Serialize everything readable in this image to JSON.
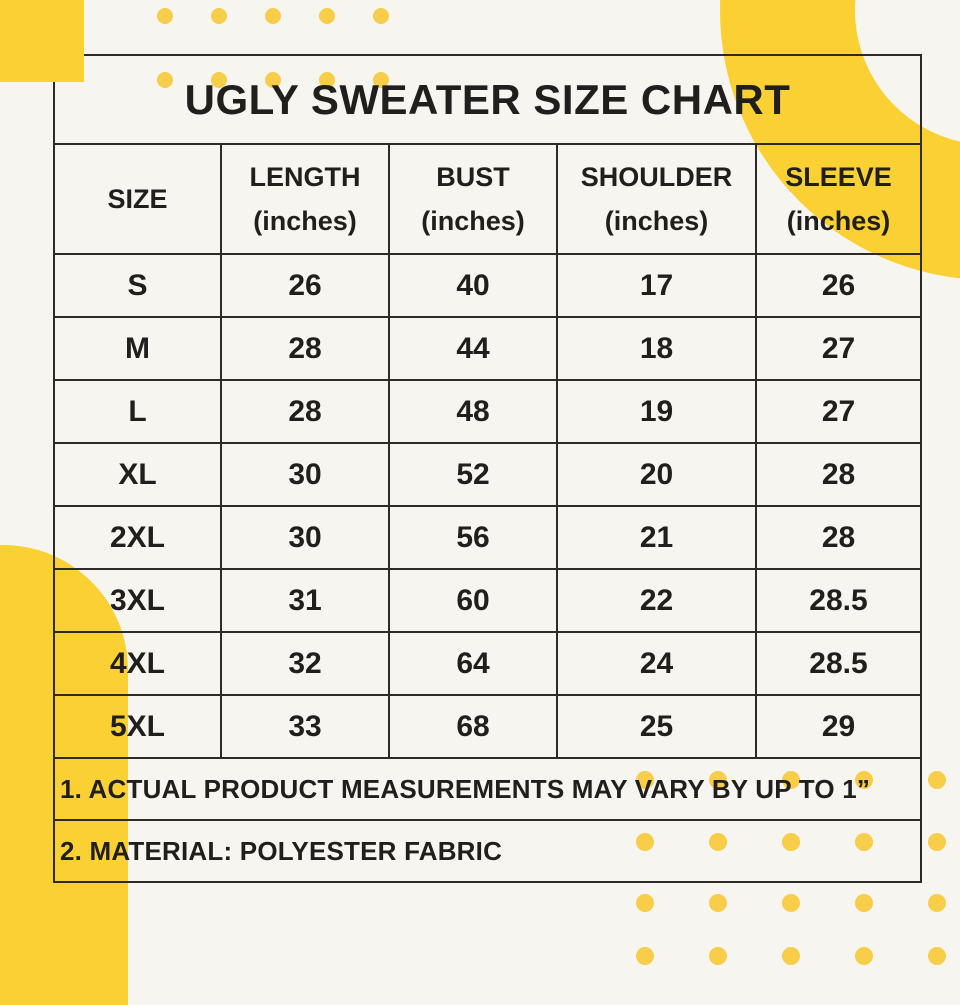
{
  "page": {
    "background_color": "#f7f5f0",
    "accent_color": "#fbd032",
    "dot_color": "#f8cd49",
    "line_color": "#2d2b28",
    "text_color": "#201f1d"
  },
  "chart": {
    "title": "UGLY SWEATER SIZE CHART",
    "columns": [
      {
        "label": "SIZE",
        "unit": ""
      },
      {
        "label": "LENGTH",
        "unit": "(inches)"
      },
      {
        "label": "BUST",
        "unit": "(inches)"
      },
      {
        "label": "SHOULDER",
        "unit": "(inches)"
      },
      {
        "label": "SLEEVE",
        "unit": "(inches)"
      }
    ],
    "rows": [
      [
        "S",
        "26",
        "40",
        "17",
        "26"
      ],
      [
        "M",
        "28",
        "44",
        "18",
        "27"
      ],
      [
        "L",
        "28",
        "48",
        "19",
        "27"
      ],
      [
        "XL",
        "30",
        "52",
        "20",
        "28"
      ],
      [
        "2XL",
        "30",
        "56",
        "21",
        "28"
      ],
      [
        "3XL",
        "31",
        "60",
        "22",
        "28.5"
      ],
      [
        "4XL",
        "32",
        "64",
        "24",
        "28.5"
      ],
      [
        "5XL",
        "33",
        "68",
        "25",
        "29"
      ]
    ],
    "notes": [
      "1. ACTUAL PRODUCT MEASUREMENTS MAY VARY BY UP TO 1”",
      "2. MATERIAL: POLYESTER FABRIC"
    ]
  },
  "chart_data": {
    "type": "table",
    "title": "UGLY SWEATER SIZE CHART",
    "columns": [
      "SIZE",
      "LENGTH (inches)",
      "BUST (inches)",
      "SHOULDER (inches)",
      "SLEEVE (inches)"
    ],
    "rows": [
      [
        "S",
        26,
        40,
        17,
        26
      ],
      [
        "M",
        28,
        44,
        18,
        27
      ],
      [
        "L",
        28,
        48,
        19,
        27
      ],
      [
        "XL",
        30,
        52,
        20,
        28
      ],
      [
        "2XL",
        30,
        56,
        21,
        28
      ],
      [
        "3XL",
        31,
        60,
        22,
        28.5
      ],
      [
        "4XL",
        32,
        64,
        24,
        28.5
      ],
      [
        "5XL",
        33,
        68,
        25,
        29
      ]
    ],
    "notes": [
      "1. ACTUAL PRODUCT MEASUREMENTS MAY VARY BY UP TO 1”",
      "2. MATERIAL: POLYESTER FABRIC"
    ]
  }
}
